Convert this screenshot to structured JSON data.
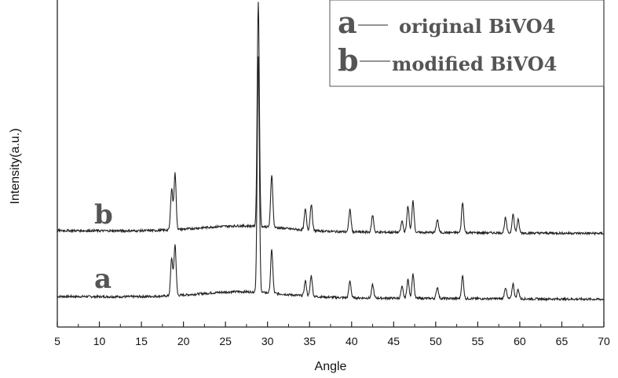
{
  "chart_data": {
    "type": "line",
    "xlabel": "Angle",
    "ylabel": "Intensity(a.u.)",
    "xlim": [
      5,
      70
    ],
    "x_ticks": [
      "5",
      "10",
      "15",
      "20",
      "25",
      "30",
      "35",
      "40",
      "45",
      "50",
      "55",
      "60",
      "65",
      "70"
    ],
    "legend": {
      "position": "top-right",
      "entries": [
        {
          "key": "a",
          "label": "original BiVO4"
        },
        {
          "key": "b",
          "label": "modified BiVO4"
        }
      ]
    },
    "series": [
      {
        "key": "a",
        "label_text": "a",
        "baseline": 0.0,
        "peaks": [
          [
            18.6,
            0.2
          ],
          [
            19.0,
            0.27
          ],
          [
            28.9,
            1.25
          ],
          [
            30.5,
            0.23
          ],
          [
            34.5,
            0.08
          ],
          [
            35.2,
            0.11
          ],
          [
            39.8,
            0.09
          ],
          [
            42.5,
            0.07
          ],
          [
            46.0,
            0.06
          ],
          [
            46.7,
            0.1
          ],
          [
            47.3,
            0.13
          ],
          [
            50.2,
            0.06
          ],
          [
            53.2,
            0.12
          ],
          [
            58.3,
            0.06
          ],
          [
            59.2,
            0.08
          ],
          [
            59.8,
            0.05
          ]
        ]
      },
      {
        "key": "b",
        "label_text": "b",
        "baseline": 0.35,
        "peaks": [
          [
            18.6,
            0.22
          ],
          [
            19.0,
            0.3
          ],
          [
            28.9,
            1.19
          ],
          [
            30.5,
            0.28
          ],
          [
            34.5,
            0.11
          ],
          [
            35.2,
            0.14
          ],
          [
            39.8,
            0.12
          ],
          [
            42.5,
            0.09
          ],
          [
            46.0,
            0.06
          ],
          [
            46.7,
            0.14
          ],
          [
            47.3,
            0.17
          ],
          [
            50.2,
            0.07
          ],
          [
            53.2,
            0.16
          ],
          [
            58.3,
            0.08
          ],
          [
            59.2,
            0.1
          ],
          [
            59.8,
            0.07
          ]
        ]
      }
    ]
  }
}
